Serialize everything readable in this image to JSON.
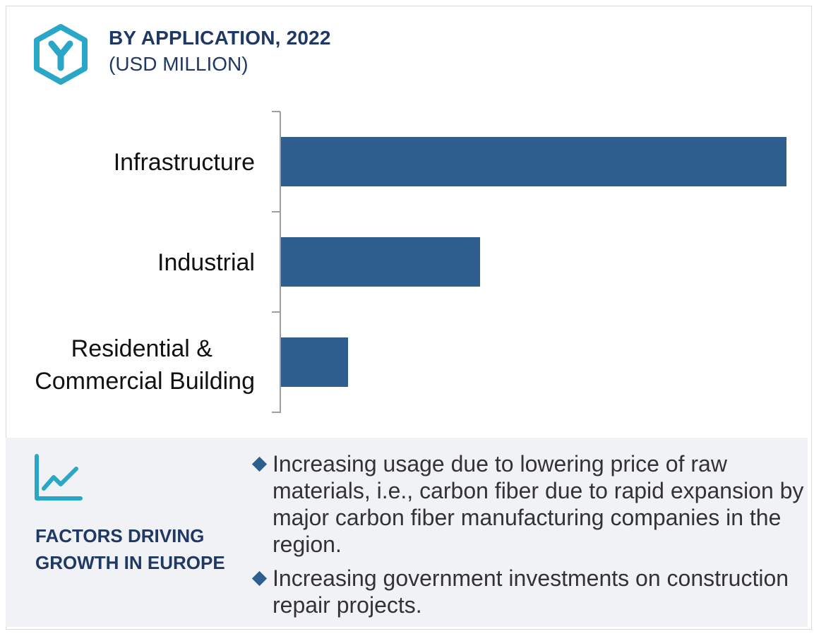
{
  "header": {
    "icon": "hexagon-y-logo-icon",
    "title": "BY APPLICATION, 2022",
    "subtitle": "(USD MILLION)"
  },
  "chart_data": {
    "type": "bar",
    "orientation": "horizontal",
    "title": "BY APPLICATION, 2022",
    "subtitle": "(USD MILLION)",
    "categories": [
      "Infrastructure",
      "Industrial",
      "Residential & Commercial Building"
    ],
    "values": [
      100,
      39.4,
      13.3
    ],
    "values_note": "",
    "xlabel": "",
    "ylabel": "",
    "grid": false,
    "bar_color": "#2e5e8e",
    "axis_color": "#9e9e9e"
  },
  "factors": {
    "icon": "line-chart-trend-icon",
    "title": "FACTORS DRIVING GROWTH IN EUROPE",
    "bullets": [
      "Increasing usage due to lowering price of raw materials, i.e., carbon fiber due to rapid expansion by major carbon fiber manufacturing companies in the region.",
      "Increasing government investments on construction repair projects."
    ]
  },
  "colors": {
    "brand": "#2aa6c7",
    "navy": "#1f3864",
    "bar": "#2e5e8e",
    "panel_bg": "#f1f2f6"
  }
}
